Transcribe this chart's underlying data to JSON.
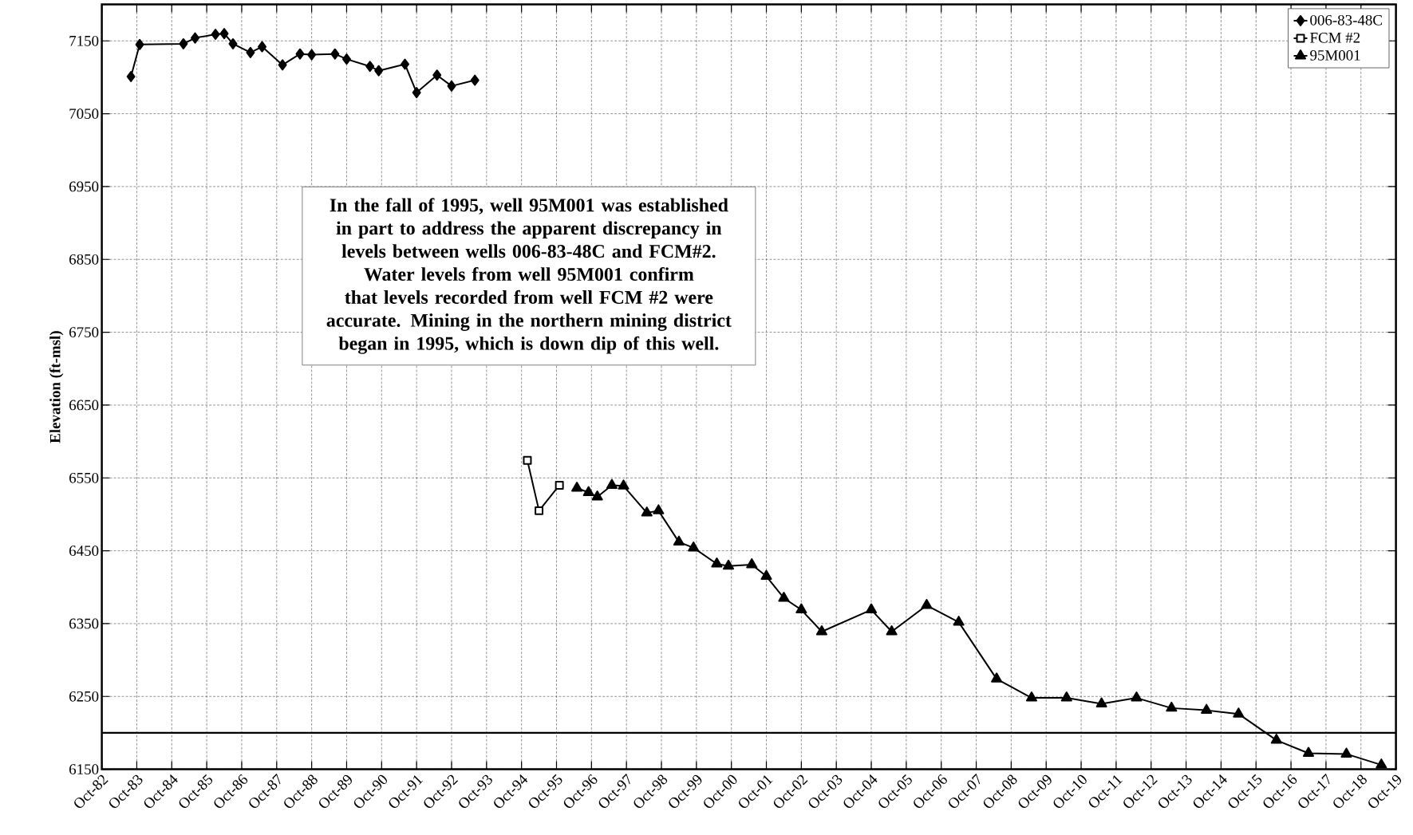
{
  "chart_data": {
    "type": "line",
    "ylabel": "Elevation (ft-msl)",
    "annotations": [
      "In the fall of 1995, well 95M001 was established in part to address the apparent discrepancy in levels between wells 006-83-48C and FCM#2.  Water levels from well 95M001 confirm that levels recorded from well FCM #2 were accurate. Mining in the northern mining district began in 1995, which is down dip of this well."
    ],
    "series": [
      {
        "name": "006-83-48C",
        "color": "#000000",
        "marker": "diamond",
        "x": [
          "1983-08",
          "1983-11",
          "1985-02",
          "1985-06",
          "1986-01",
          "1986-04",
          "1986-07",
          "1987-01",
          "1987-05",
          "1987-12",
          "1988-06",
          "1988-10",
          "1989-06",
          "1989-10",
          "1990-06",
          "1990-09",
          "1991-06",
          "1991-10",
          "1992-05",
          "1992-10",
          "1993-06"
        ],
        "values": [
          7101,
          7145,
          7146,
          7154,
          7159,
          7160,
          7146,
          7134,
          7142,
          7117,
          7132,
          7131,
          7132,
          7125,
          7115,
          7109,
          7118,
          7079,
          7103,
          7088,
          7096
        ]
      },
      {
        "name": "FCM #2",
        "color": "#000000",
        "marker": "square",
        "x": [
          "1994-12",
          "1995-04",
          "1995-11"
        ],
        "values": [
          6574,
          6505,
          6540
        ]
      },
      {
        "name": "95M001",
        "color": "#000000",
        "marker": "triangle",
        "x": [
          "1996-05",
          "1996-09",
          "1996-12",
          "1997-05",
          "1997-09",
          "1998-05",
          "1998-09",
          "1999-04",
          "1999-09",
          "2000-05",
          "2000-09",
          "2001-05",
          "2001-10",
          "2002-04",
          "2002-10",
          "2003-05",
          "2004-10",
          "2005-05",
          "2006-05",
          "2007-04",
          "2008-05",
          "2009-05",
          "2010-05",
          "2011-05",
          "2012-05",
          "2013-05",
          "2014-05",
          "2015-04",
          "2016-05",
          "2017-04",
          "2018-05",
          "2019-05"
        ],
        "values": [
          6536,
          6530,
          6524,
          6540,
          6539,
          6502,
          6505,
          6462,
          6454,
          6432,
          6429,
          6431,
          6415,
          6385,
          6369,
          6339,
          6369,
          6339,
          6375,
          6352,
          6274,
          6248,
          6248,
          6240,
          6248,
          6234,
          6231,
          6226,
          6190,
          6172,
          6171,
          6156
        ]
      }
    ],
    "xlim": [
      "1982-10",
      "2019-10"
    ],
    "xticks": [
      {
        "value": "1982-10",
        "label": "Oct-82"
      },
      {
        "value": "1983-10",
        "label": "Oct-83"
      },
      {
        "value": "1984-10",
        "label": "Oct-84"
      },
      {
        "value": "1985-10",
        "label": "Oct-85"
      },
      {
        "value": "1986-10",
        "label": "Oct-86"
      },
      {
        "value": "1987-10",
        "label": "Oct-87"
      },
      {
        "value": "1988-10",
        "label": "Oct-88"
      },
      {
        "value": "1989-10",
        "label": "Oct-89"
      },
      {
        "value": "1990-10",
        "label": "Oct-90"
      },
      {
        "value": "1991-10",
        "label": "Oct-91"
      },
      {
        "value": "1992-10",
        "label": "Oct-92"
      },
      {
        "value": "1993-10",
        "label": "Oct-93"
      },
      {
        "value": "1994-10",
        "label": "Oct-94"
      },
      {
        "value": "1995-10",
        "label": "Oct-95"
      },
      {
        "value": "1996-10",
        "label": "Oct-96"
      },
      {
        "value": "1997-10",
        "label": "Oct-97"
      },
      {
        "value": "1998-10",
        "label": "Oct-98"
      },
      {
        "value": "1999-10",
        "label": "Oct-99"
      },
      {
        "value": "2000-10",
        "label": "Oct-00"
      },
      {
        "value": "2001-10",
        "label": "Oct-01"
      },
      {
        "value": "2002-10",
        "label": "Oct-02"
      },
      {
        "value": "2003-10",
        "label": "Oct-03"
      },
      {
        "value": "2004-10",
        "label": "Oct-04"
      },
      {
        "value": "2005-10",
        "label": "Oct-05"
      },
      {
        "value": "2006-10",
        "label": "Oct-06"
      },
      {
        "value": "2007-10",
        "label": "Oct-07"
      },
      {
        "value": "2008-10",
        "label": "Oct-08"
      },
      {
        "value": "2009-10",
        "label": "Oct-09"
      },
      {
        "value": "2010-10",
        "label": "Oct-10"
      },
      {
        "value": "2011-10",
        "label": "Oct-11"
      },
      {
        "value": "2012-10",
        "label": "Oct-12"
      },
      {
        "value": "2013-10",
        "label": "Oct-13"
      },
      {
        "value": "2014-10",
        "label": "Oct-14"
      },
      {
        "value": "2015-10",
        "label": "Oct-15"
      },
      {
        "value": "2016-10",
        "label": "Oct-16"
      },
      {
        "value": "2017-10",
        "label": "Oct-17"
      },
      {
        "value": "2018-10",
        "label": "Oct-18"
      },
      {
        "value": "2019-10",
        "label": "Oct-19"
      }
    ],
    "ylim": [
      6150,
      7200
    ],
    "yticks": [
      6150,
      6250,
      6350,
      6450,
      6550,
      6650,
      6750,
      6850,
      6950,
      7050,
      7150
    ],
    "ref_lines": [
      {
        "axis": "y",
        "value": 6200,
        "color": "#000000",
        "line_style": "solid"
      }
    ],
    "grid": true,
    "legend": "top right",
    "line_style": "solid"
  }
}
